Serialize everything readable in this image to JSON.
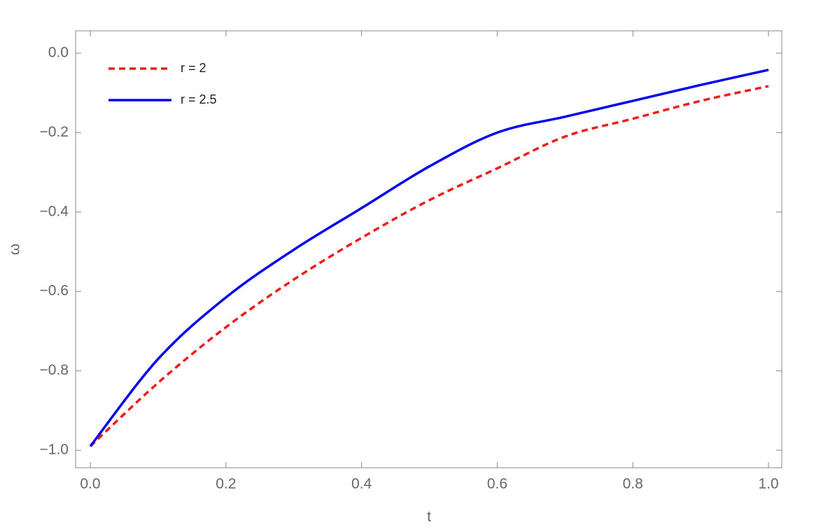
{
  "chart_data": {
    "type": "line",
    "x_label": "t",
    "y_label": "ω",
    "x": [
      0,
      0.1,
      0.2,
      0.3,
      0.4,
      0.5,
      0.6,
      0.7,
      0.8,
      0.9,
      1.0
    ],
    "series": [
      {
        "name": "r = 2",
        "color": "#ee1c1c",
        "dash": true,
        "values": [
          -0.99,
          -0.83,
          -0.69,
          -0.57,
          -0.465,
          -0.37,
          -0.29,
          -0.21,
          -0.165,
          -0.12,
          -0.083
        ]
      },
      {
        "name": "r = 2.5",
        "color": "#0000ee",
        "dash": false,
        "values": [
          -0.99,
          -0.77,
          -0.615,
          -0.495,
          -0.39,
          -0.285,
          -0.2,
          -0.16,
          -0.12,
          -0.08,
          -0.042
        ]
      }
    ],
    "xlim": [
      -0.0217,
      1.0196
    ],
    "ylim": [
      -1.0441,
      0.0564
    ],
    "xticks": [
      {
        "value": 0,
        "label": "0.0"
      },
      {
        "value": 0.2,
        "label": "0.2"
      },
      {
        "value": 0.4,
        "label": "0.4"
      },
      {
        "value": 0.6,
        "label": "0.6"
      },
      {
        "value": 0.8,
        "label": "0.8"
      },
      {
        "value": 1,
        "label": "1.0"
      }
    ],
    "yticks": [
      {
        "value": -1,
        "label": "−1.0"
      },
      {
        "value": -0.8,
        "label": "−0.8"
      },
      {
        "value": -0.6,
        "label": "−0.6"
      },
      {
        "value": -0.4,
        "label": "−0.4"
      },
      {
        "value": -0.2,
        "label": "−0.2"
      },
      {
        "value": 0,
        "label": "0.0"
      }
    ],
    "legend": "upper left"
  }
}
